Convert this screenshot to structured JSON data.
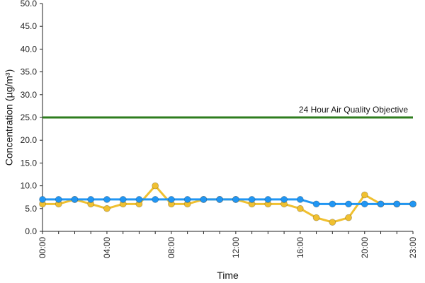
{
  "chart_data": {
    "type": "line",
    "xlabel": "Time",
    "ylabel": "Concentration (µg/m³)",
    "ylim": [
      0,
      50
    ],
    "yticks": [
      "0.0",
      "5.0",
      "10.0",
      "15.0",
      "20.0",
      "25.0",
      "30.0",
      "35.0",
      "40.0",
      "45.0",
      "50.0"
    ],
    "xticks": [
      "00:00",
      "04:00",
      "08:00",
      "12:00",
      "16:00",
      "20:00",
      "23:00"
    ],
    "x": [
      0,
      1,
      2,
      3,
      4,
      5,
      6,
      7,
      8,
      9,
      10,
      11,
      12,
      13,
      14,
      15,
      16,
      17,
      18,
      19,
      20,
      21,
      22,
      23
    ],
    "x_unit": "hour",
    "grid": false,
    "series": [
      {
        "color": "#f0c030",
        "values": [
          6,
          6,
          7,
          6,
          5,
          6,
          6,
          10,
          6,
          6,
          7,
          7,
          7,
          6,
          6,
          6,
          5,
          3,
          2,
          3,
          8,
          6,
          6,
          6
        ]
      },
      {
        "color": "#2196f3",
        "values": [
          7,
          7,
          7,
          7,
          7,
          7,
          7,
          7,
          7,
          7,
          7,
          7,
          7,
          7,
          7,
          7,
          7,
          6,
          6,
          6,
          6,
          6,
          6,
          6
        ]
      }
    ],
    "reference_line": {
      "value": 25,
      "label": "24 Hour Air Quality Objective",
      "color": "#2e7d1e"
    }
  }
}
